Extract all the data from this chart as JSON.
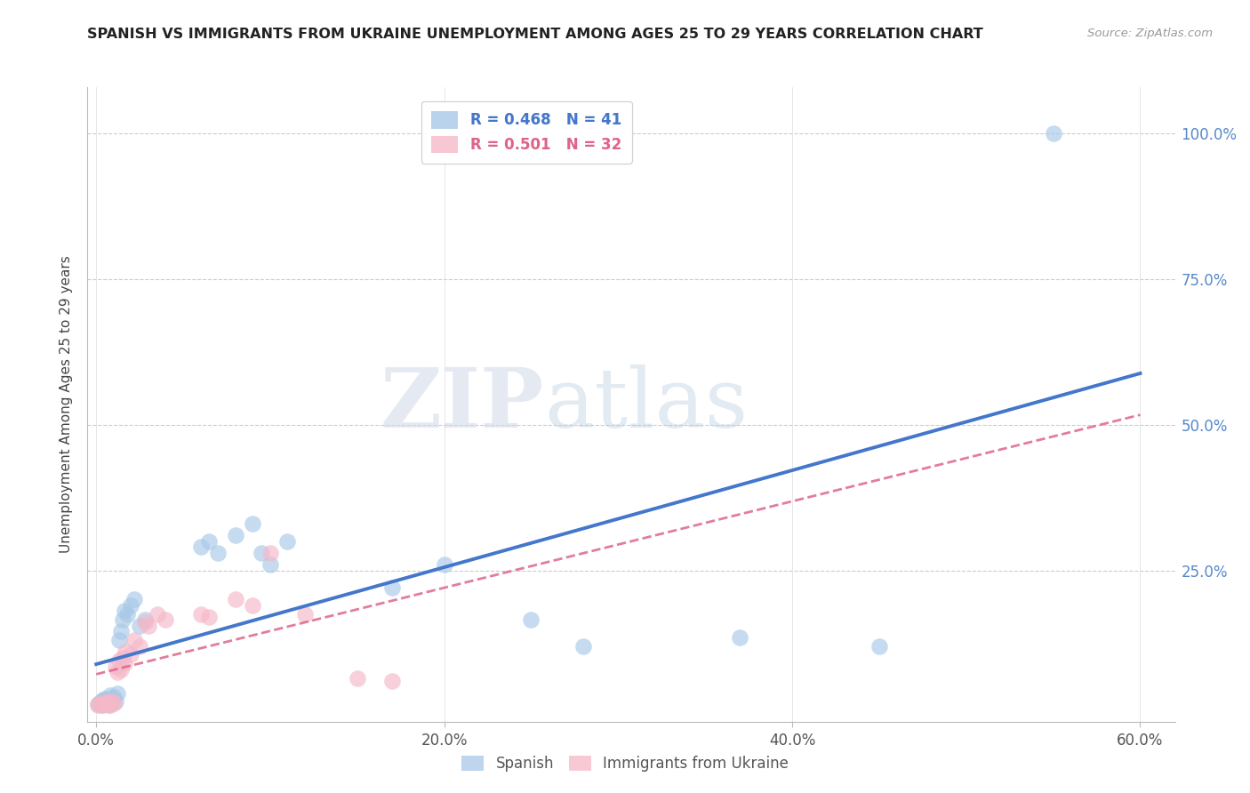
{
  "title": "SPANISH VS IMMIGRANTS FROM UKRAINE UNEMPLOYMENT AMONG AGES 25 TO 29 YEARS CORRELATION CHART",
  "source": "Source: ZipAtlas.com",
  "ylabel": "Unemployment Among Ages 25 to 29 years",
  "xlim": [
    -0.005,
    0.62
  ],
  "ylim": [
    -0.01,
    1.08
  ],
  "xtick_labels": [
    "0.0%",
    "20.0%",
    "40.0%",
    "60.0%"
  ],
  "xtick_vals": [
    0.0,
    0.2,
    0.4,
    0.6
  ],
  "ytick_labels": [
    "100.0%",
    "75.0%",
    "50.0%",
    "25.0%"
  ],
  "ytick_vals": [
    1.0,
    0.75,
    0.5,
    0.25
  ],
  "background_color": "#ffffff",
  "grid_color": "#cccccc",
  "watermark_ZIP": "ZIP",
  "watermark_atlas": "atlas",
  "spanish_color": "#a8c8e8",
  "ukraine_color": "#f5b8c8",
  "spanish_line_color": "#4477cc",
  "ukraine_line_color": "#dd6688",
  "legend_R_spanish": "R = 0.468",
  "legend_N_spanish": "N = 41",
  "legend_R_ukraine": "R = 0.501",
  "legend_N_ukraine": "N = 32",
  "spanish_x": [
    0.001,
    0.002,
    0.003,
    0.003,
    0.004,
    0.004,
    0.005,
    0.005,
    0.006,
    0.007,
    0.007,
    0.008,
    0.008,
    0.009,
    0.01,
    0.011,
    0.012,
    0.013,
    0.014,
    0.015,
    0.016,
    0.018,
    0.02,
    0.022,
    0.025,
    0.028,
    0.06,
    0.065,
    0.07,
    0.08,
    0.09,
    0.095,
    0.1,
    0.11,
    0.17,
    0.2,
    0.25,
    0.28,
    0.37,
    0.45,
    0.55
  ],
  "spanish_y": [
    0.02,
    0.022,
    0.018,
    0.025,
    0.02,
    0.028,
    0.022,
    0.03,
    0.025,
    0.018,
    0.03,
    0.022,
    0.035,
    0.028,
    0.032,
    0.025,
    0.038,
    0.13,
    0.145,
    0.165,
    0.18,
    0.175,
    0.19,
    0.2,
    0.155,
    0.165,
    0.29,
    0.3,
    0.28,
    0.31,
    0.33,
    0.28,
    0.26,
    0.3,
    0.22,
    0.26,
    0.165,
    0.12,
    0.135,
    0.12,
    1.0
  ],
  "ukraine_x": [
    0.001,
    0.002,
    0.003,
    0.004,
    0.005,
    0.006,
    0.007,
    0.008,
    0.009,
    0.01,
    0.011,
    0.012,
    0.013,
    0.014,
    0.015,
    0.016,
    0.017,
    0.02,
    0.022,
    0.025,
    0.028,
    0.03,
    0.035,
    0.04,
    0.06,
    0.065,
    0.08,
    0.09,
    0.1,
    0.12,
    0.15,
    0.17
  ],
  "ukraine_y": [
    0.018,
    0.02,
    0.022,
    0.018,
    0.022,
    0.02,
    0.025,
    0.018,
    0.025,
    0.022,
    0.085,
    0.075,
    0.095,
    0.08,
    0.1,
    0.09,
    0.11,
    0.105,
    0.13,
    0.12,
    0.16,
    0.155,
    0.175,
    0.165,
    0.175,
    0.17,
    0.2,
    0.19,
    0.28,
    0.175,
    0.065,
    0.06
  ]
}
